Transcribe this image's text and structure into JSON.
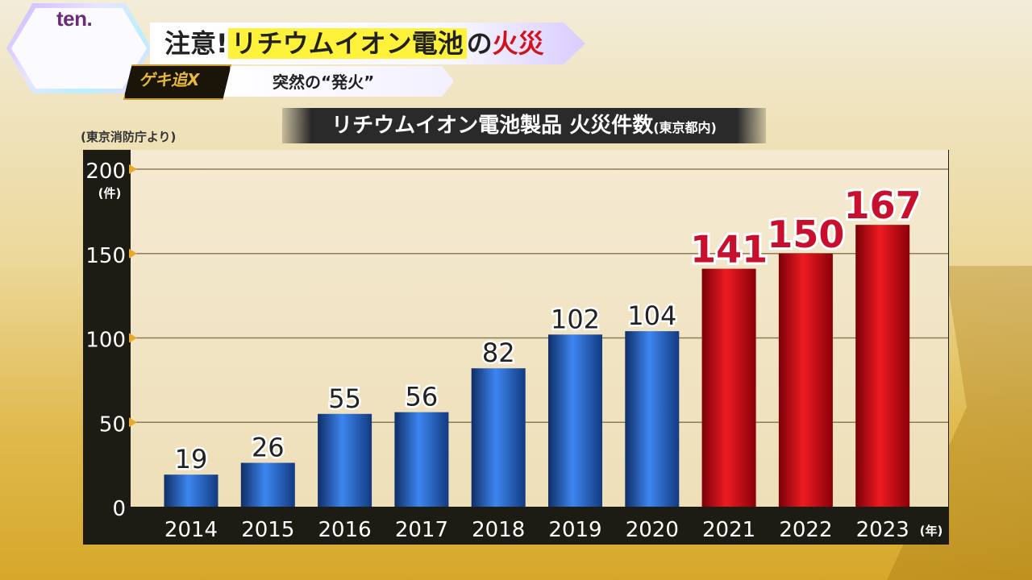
{
  "logo": {
    "text": "ten."
  },
  "headline": {
    "part1": "注意!",
    "part2": "リチウムイオン電池",
    "part3": "の",
    "part4": "火災"
  },
  "badge": {
    "text": "ゲキ追X"
  },
  "subtitle": "突然の“発火”",
  "chart_title": {
    "main": "リチウムイオン電池製品 火災件数",
    "suffix": "(東京都内)"
  },
  "source_note": "(東京消防庁より)",
  "colors": {
    "blue_bar": "#2f6fd3",
    "red_bar": "#d8101a",
    "red_label": "#c8102e",
    "panel": "#1c1b14"
  },
  "chart_data": {
    "type": "bar",
    "title": "リチウムイオン電池製品 火災件数(東京都内)",
    "categories": [
      "2014",
      "2015",
      "2016",
      "2017",
      "2018",
      "2019",
      "2020",
      "2021",
      "2022",
      "2023"
    ],
    "values": [
      19,
      26,
      55,
      56,
      82,
      102,
      104,
      141,
      150,
      167
    ],
    "highlight_colors": [
      "blue",
      "blue",
      "blue",
      "blue",
      "blue",
      "blue",
      "blue",
      "red",
      "red",
      "red"
    ],
    "yticks": [
      0,
      50,
      100,
      150,
      200
    ],
    "ylim": [
      0,
      200
    ],
    "yunit": "(件)",
    "xunit": "(年)",
    "grid": true
  }
}
